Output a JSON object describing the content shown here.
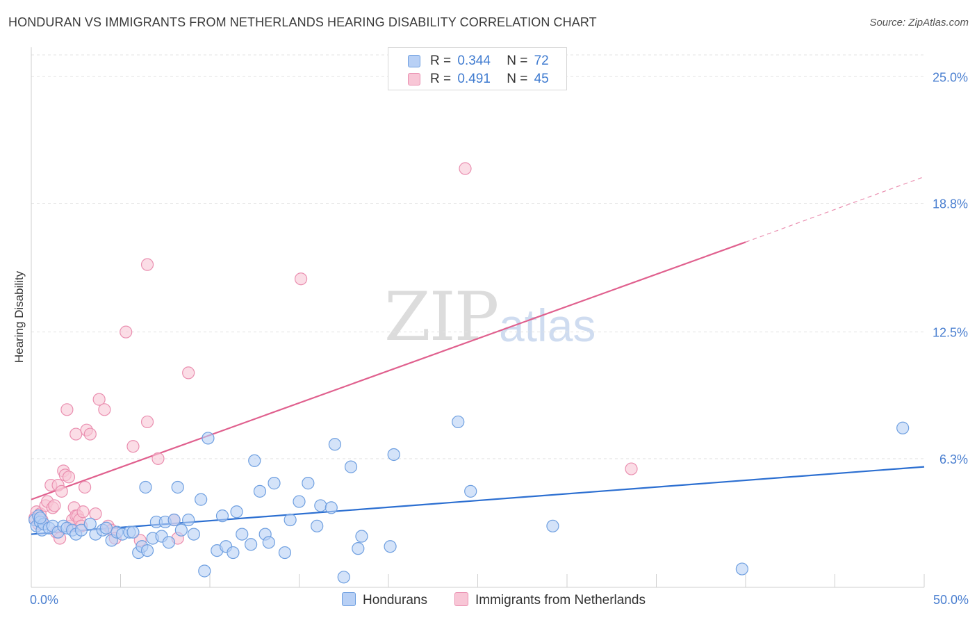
{
  "title": "HONDURAN VS IMMIGRANTS FROM NETHERLANDS HEARING DISABILITY CORRELATION CHART",
  "source": "Source: ZipAtlas.com",
  "watermark": {
    "zip": "ZIP",
    "atlas": "atlas"
  },
  "legend": {
    "r_label": "R =",
    "n_label": "N =",
    "rows": [
      {
        "r": "0.344",
        "n": "72"
      },
      {
        "r": "0.491",
        "n": "45"
      }
    ]
  },
  "colors": {
    "hondurans_fill": "#b8d0f5",
    "hondurans_stroke": "#6e9fe0",
    "hondurans_line": "#2c6fd1",
    "netherlands_fill": "#f8c6d6",
    "netherlands_stroke": "#ea8fb0",
    "netherlands_line": "#e0608e",
    "tick_text": "#4a7fd0"
  },
  "chart_data": {
    "type": "scatter",
    "title": "HONDURAN VS IMMIGRANTS FROM NETHERLANDS HEARING DISABILITY CORRELATION CHART",
    "xlabel": "",
    "ylabel": "Hearing Disability",
    "xlim": [
      0,
      50
    ],
    "ylim": [
      0,
      26.2
    ],
    "x_tick_labels": [
      "0.0%",
      "50.0%"
    ],
    "y_ticks": [
      6.3,
      12.5,
      18.8,
      25.0
    ],
    "y_tick_labels": [
      "6.3%",
      "12.5%",
      "18.8%",
      "25.0%"
    ],
    "grid": true,
    "legend_position": "top-center",
    "series": [
      {
        "name": "Hondurans",
        "r": 0.344,
        "n": 72,
        "trend": {
          "x0": 0,
          "y0": 2.6,
          "x1": 50,
          "y1": 5.9
        },
        "points": [
          [
            0.2,
            3.3
          ],
          [
            0.3,
            3.0
          ],
          [
            0.4,
            3.5
          ],
          [
            0.5,
            3.2
          ],
          [
            0.6,
            2.8
          ],
          [
            0.7,
            3.1
          ],
          [
            1.0,
            2.9
          ],
          [
            1.2,
            3.0
          ],
          [
            1.5,
            2.7
          ],
          [
            1.8,
            3.0
          ],
          [
            2.0,
            2.9
          ],
          [
            2.3,
            2.8
          ],
          [
            2.5,
            2.6
          ],
          [
            2.8,
            2.8
          ],
          [
            3.3,
            3.1
          ],
          [
            3.6,
            2.6
          ],
          [
            4.0,
            2.8
          ],
          [
            4.2,
            2.9
          ],
          [
            4.5,
            2.3
          ],
          [
            4.8,
            2.7
          ],
          [
            5.1,
            2.6
          ],
          [
            5.5,
            2.7
          ],
          [
            5.7,
            2.7
          ],
          [
            6.0,
            1.7
          ],
          [
            6.2,
            2.0
          ],
          [
            6.4,
            4.9
          ],
          [
            6.5,
            1.8
          ],
          [
            6.8,
            2.4
          ],
          [
            7.0,
            3.2
          ],
          [
            7.3,
            2.5
          ],
          [
            7.5,
            3.2
          ],
          [
            7.7,
            2.2
          ],
          [
            8.0,
            3.3
          ],
          [
            8.2,
            4.9
          ],
          [
            8.4,
            2.8
          ],
          [
            8.8,
            3.3
          ],
          [
            9.1,
            2.6
          ],
          [
            9.5,
            4.3
          ],
          [
            9.7,
            0.8
          ],
          [
            9.9,
            7.3
          ],
          [
            10.4,
            1.8
          ],
          [
            10.7,
            3.5
          ],
          [
            10.9,
            2.0
          ],
          [
            11.3,
            1.7
          ],
          [
            11.5,
            3.7
          ],
          [
            11.8,
            2.6
          ],
          [
            12.3,
            2.1
          ],
          [
            12.5,
            6.2
          ],
          [
            12.8,
            4.7
          ],
          [
            13.1,
            2.6
          ],
          [
            13.3,
            2.2
          ],
          [
            13.6,
            5.1
          ],
          [
            14.2,
            1.7
          ],
          [
            14.5,
            3.3
          ],
          [
            15.0,
            4.2
          ],
          [
            15.5,
            5.1
          ],
          [
            16.0,
            3.0
          ],
          [
            16.2,
            4.0
          ],
          [
            16.8,
            3.9
          ],
          [
            17.0,
            7.0
          ],
          [
            17.5,
            0.5
          ],
          [
            17.9,
            5.9
          ],
          [
            18.3,
            1.9
          ],
          [
            18.5,
            2.5
          ],
          [
            20.1,
            2.0
          ],
          [
            20.3,
            6.5
          ],
          [
            23.9,
            8.1
          ],
          [
            24.6,
            4.7
          ],
          [
            29.2,
            3.0
          ],
          [
            39.8,
            0.9
          ],
          [
            48.8,
            7.8
          ],
          [
            0.5,
            3.4
          ]
        ]
      },
      {
        "name": "Immigrants from Netherlands",
        "r": 0.491,
        "n": 45,
        "trend": {
          "x0": 0,
          "y0": 4.3,
          "x1": 40,
          "y1": 16.9,
          "dashed_to": {
            "x": 50,
            "y": 20.1
          }
        },
        "points": [
          [
            0.2,
            3.4
          ],
          [
            0.3,
            3.7
          ],
          [
            0.4,
            3.1
          ],
          [
            0.5,
            3.6
          ],
          [
            0.6,
            3.3
          ],
          [
            0.8,
            4.0
          ],
          [
            0.9,
            4.2
          ],
          [
            1.1,
            5.0
          ],
          [
            1.2,
            3.9
          ],
          [
            1.3,
            4.0
          ],
          [
            1.4,
            2.7
          ],
          [
            1.5,
            5.0
          ],
          [
            1.6,
            2.4
          ],
          [
            1.7,
            4.7
          ],
          [
            1.8,
            5.7
          ],
          [
            1.9,
            5.5
          ],
          [
            2.0,
            8.7
          ],
          [
            2.1,
            5.4
          ],
          [
            2.2,
            3.0
          ],
          [
            2.3,
            3.3
          ],
          [
            2.4,
            3.9
          ],
          [
            2.5,
            3.5
          ],
          [
            2.5,
            7.5
          ],
          [
            2.6,
            3.5
          ],
          [
            2.7,
            3.3
          ],
          [
            2.8,
            3.0
          ],
          [
            2.9,
            3.7
          ],
          [
            3.0,
            4.9
          ],
          [
            3.1,
            7.7
          ],
          [
            3.3,
            7.5
          ],
          [
            3.6,
            3.6
          ],
          [
            3.8,
            9.2
          ],
          [
            4.1,
            8.7
          ],
          [
            4.3,
            3.0
          ],
          [
            4.5,
            2.8
          ],
          [
            4.7,
            2.4
          ],
          [
            5.3,
            12.5
          ],
          [
            5.7,
            6.9
          ],
          [
            6.1,
            2.3
          ],
          [
            6.5,
            8.1
          ],
          [
            7.1,
            6.3
          ],
          [
            8.0,
            3.3
          ],
          [
            8.2,
            2.4
          ],
          [
            15.1,
            15.1
          ],
          [
            24.3,
            20.5
          ]
        ],
        "extra_points": [
          [
            6.5,
            15.8
          ],
          [
            8.8,
            10.5
          ],
          [
            33.6,
            5.8
          ]
        ]
      }
    ]
  },
  "bottom_legend": [
    {
      "label": "Hondurans"
    },
    {
      "label": "Immigrants from Netherlands"
    }
  ]
}
